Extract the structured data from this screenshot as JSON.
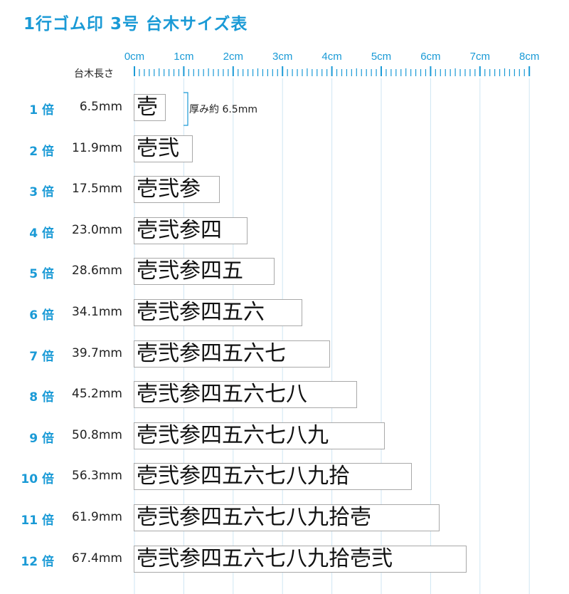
{
  "title": "1行ゴム印 3号 台木サイズ表",
  "ruler": {
    "label": "台木長さ",
    "ticks": [
      "0cm",
      "1cm",
      "2cm",
      "3cm",
      "4cm",
      "5cm",
      "6cm",
      "7cm",
      "8cm"
    ]
  },
  "thickness_note": "厚み約 6.5mm",
  "colors": {
    "accent": "#1a9ad6",
    "grid": "#cfe6f3",
    "border": "#a9a9a9"
  },
  "rows": [
    {
      "mult": "1 倍",
      "length": "6.5mm",
      "length_mm": 6.5,
      "text": "壱"
    },
    {
      "mult": "2 倍",
      "length": "11.9mm",
      "length_mm": 11.9,
      "text": "壱弐"
    },
    {
      "mult": "3 倍",
      "length": "17.5mm",
      "length_mm": 17.5,
      "text": "壱弐参"
    },
    {
      "mult": "4 倍",
      "length": "23.0mm",
      "length_mm": 23.0,
      "text": "壱弐参四"
    },
    {
      "mult": "5 倍",
      "length": "28.6mm",
      "length_mm": 28.6,
      "text": "壱弐参四五"
    },
    {
      "mult": "6 倍",
      "length": "34.1mm",
      "length_mm": 34.1,
      "text": "壱弐参四五六"
    },
    {
      "mult": "7 倍",
      "length": "39.7mm",
      "length_mm": 39.7,
      "text": "壱弐参四五六七"
    },
    {
      "mult": "8 倍",
      "length": "45.2mm",
      "length_mm": 45.2,
      "text": "壱弐参四五六七八"
    },
    {
      "mult": "9 倍",
      "length": "50.8mm",
      "length_mm": 50.8,
      "text": "壱弐参四五六七八九"
    },
    {
      "mult": "10 倍",
      "length": "56.3mm",
      "length_mm": 56.3,
      "text": "壱弐参四五六七八九拾"
    },
    {
      "mult": "11 倍",
      "length": "61.9mm",
      "length_mm": 61.9,
      "text": "壱弐参四五六七八九拾壱"
    },
    {
      "mult": "12 倍",
      "length": "67.4mm",
      "length_mm": 67.4,
      "text": "壱弐参四五六七八九拾壱弐"
    }
  ]
}
